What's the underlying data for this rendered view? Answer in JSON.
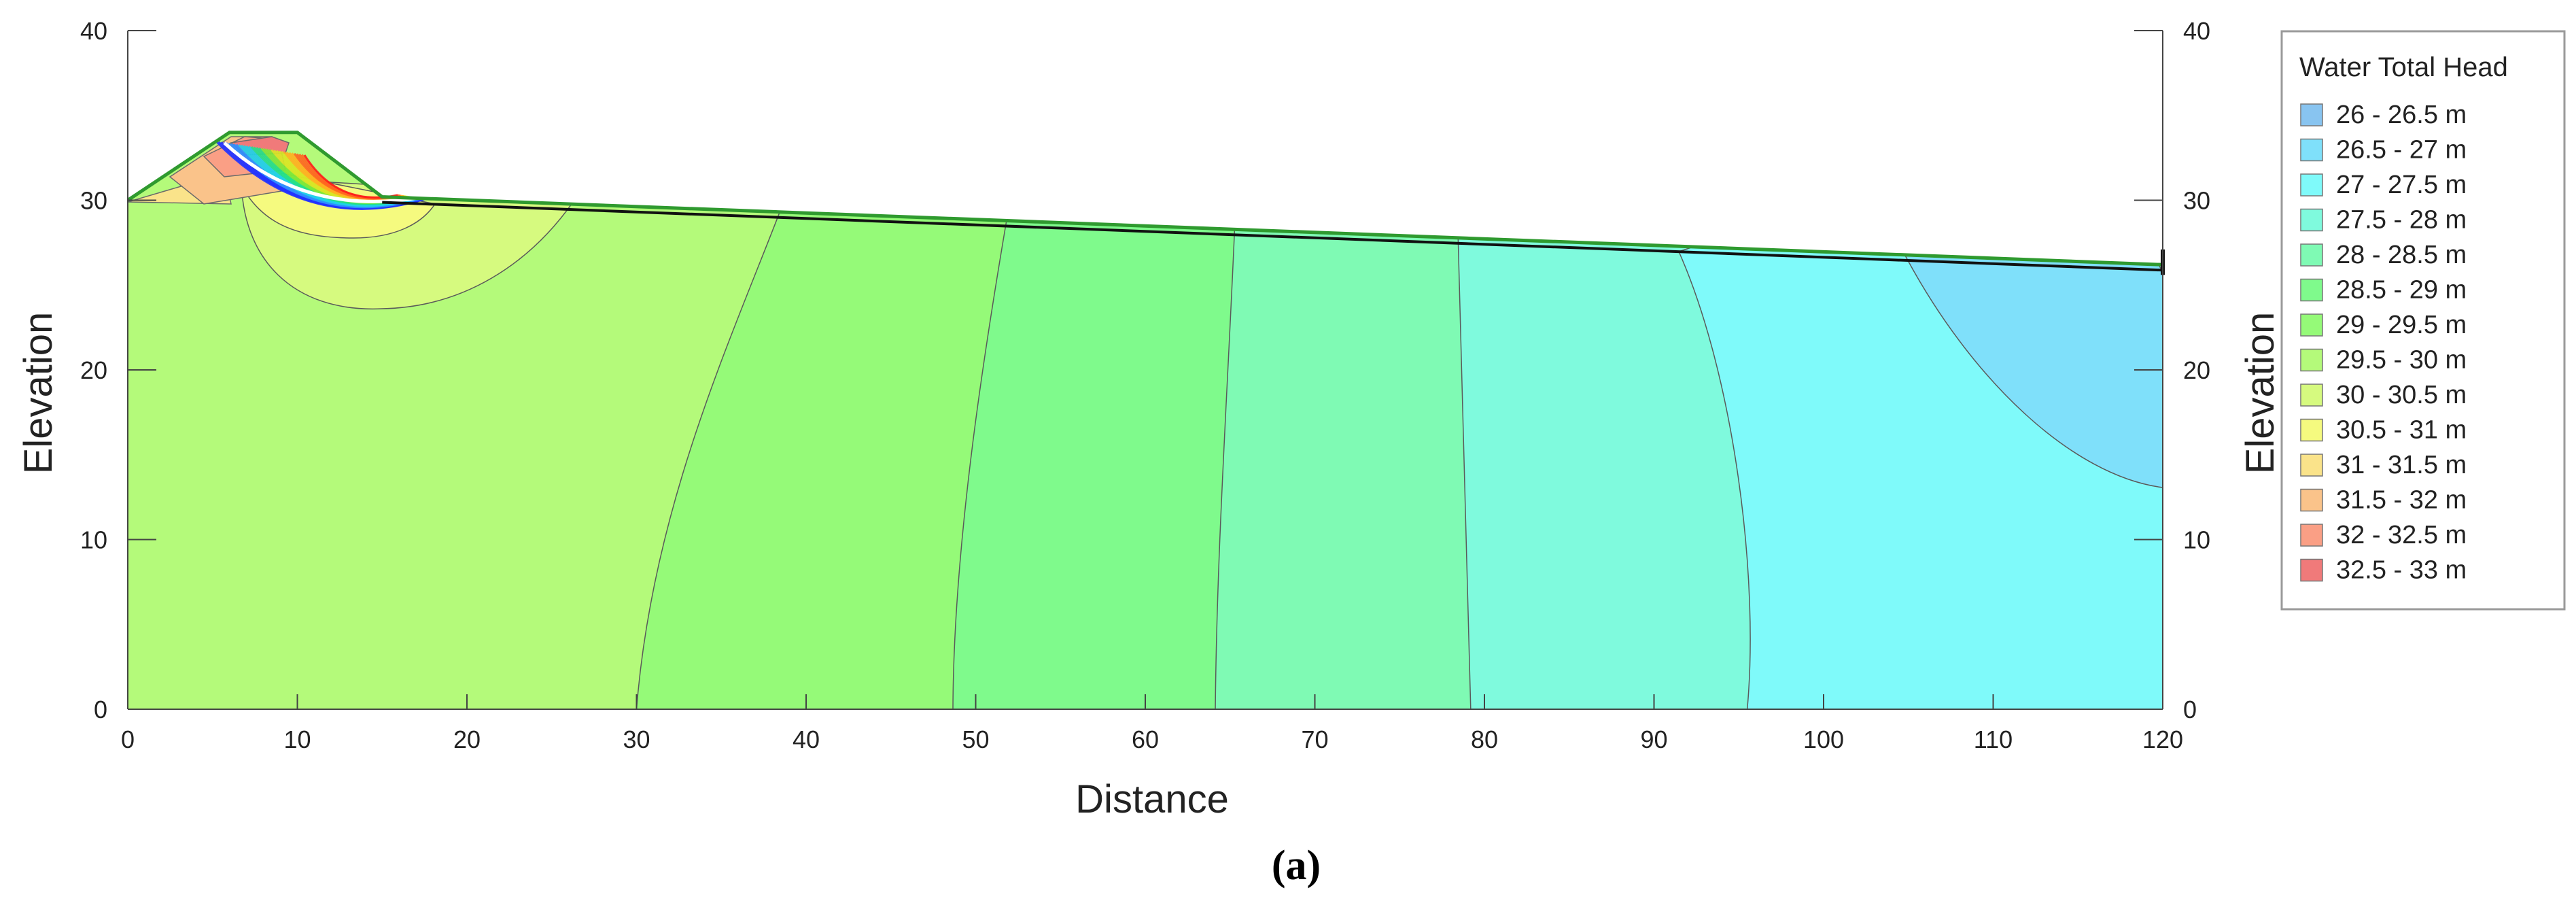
{
  "chart_data": {
    "type": "area",
    "xlabel": "Distance",
    "ylabel_left": "Elevation",
    "ylabel_right": "Elevation",
    "xlim": [
      0,
      120
    ],
    "ylim": [
      0,
      40
    ],
    "xticks": [
      0,
      10,
      20,
      30,
      40,
      50,
      60,
      70,
      80,
      90,
      100,
      110,
      120
    ],
    "yticks": [
      0,
      10,
      20,
      30,
      40
    ],
    "grid": false,
    "legend_position": "right",
    "caption": "(a)",
    "legend": {
      "title": "Water Total Head",
      "entries": [
        {
          "label": "26 - 26.5 m",
          "color": "#88c4f0"
        },
        {
          "label": "26.5 - 27 m",
          "color": "#7fe0fa"
        },
        {
          "label": "27 - 27.5 m",
          "color": "#7ffafa"
        },
        {
          "label": "27.5 - 28 m",
          "color": "#7ffadd"
        },
        {
          "label": "28 - 28.5 m",
          "color": "#7ffab4"
        },
        {
          "label": "28.5 - 29 m",
          "color": "#7ffa8c"
        },
        {
          "label": "29 - 29.5 m",
          "color": "#95fa78"
        },
        {
          "label": "29.5 - 30 m",
          "color": "#b4fa7a"
        },
        {
          "label": "30 - 30.5 m",
          "color": "#d6fa7f"
        },
        {
          "label": "30.5 - 31 m",
          "color": "#f5fa7f"
        },
        {
          "label": "31 - 31.5 m",
          "color": "#fae38a"
        },
        {
          "label": "31.5 - 32 m",
          "color": "#fac38a"
        },
        {
          "label": "32 - 32.5 m",
          "color": "#fa9f85"
        },
        {
          "label": "32.5 - 33 m",
          "color": "#f07a7a"
        }
      ]
    },
    "ground_surface": [
      [
        0,
        30
      ],
      [
        6,
        34
      ],
      [
        10,
        34
      ],
      [
        15,
        30.2
      ],
      [
        120,
        26.2
      ]
    ],
    "bottom_contours": [
      {
        "range": "29.5 - 30 m",
        "x_start": 0,
        "x_end": 30
      },
      {
        "range": "29 - 29.5 m",
        "x_start": 30,
        "x_end": 48.7
      },
      {
        "range": "28.5 - 29 m",
        "x_start": 48.7,
        "x_end": 64.3
      },
      {
        "range": "28 - 28.5 m",
        "x_start": 64.3,
        "x_end": 79.2
      },
      {
        "range": "27.5 - 28 m",
        "x_start": 79.2,
        "x_end": 95.5
      },
      {
        "range": "27 - 27.5 m",
        "x_start": 95.5,
        "x_end": 120
      }
    ]
  }
}
